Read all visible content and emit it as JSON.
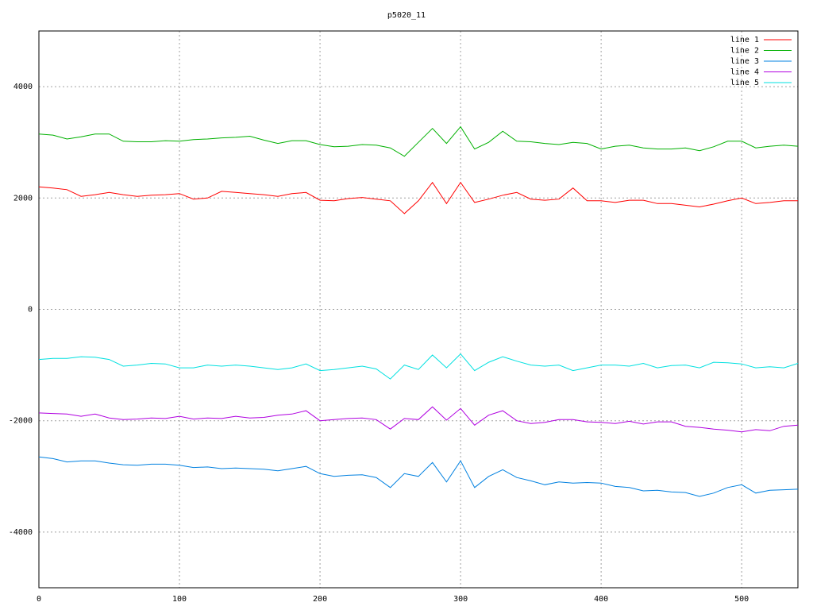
{
  "chart_data": {
    "type": "line",
    "title": "p5020_11",
    "x": [
      0,
      10,
      20,
      30,
      40,
      50,
      60,
      70,
      80,
      90,
      100,
      110,
      120,
      130,
      140,
      150,
      160,
      170,
      180,
      190,
      200,
      210,
      220,
      230,
      240,
      250,
      260,
      270,
      280,
      290,
      300,
      310,
      320,
      330,
      340,
      350,
      360,
      370,
      380,
      390,
      400,
      410,
      420,
      430,
      440,
      450,
      460,
      470,
      480,
      490,
      500,
      510,
      520,
      530,
      540
    ],
    "series": [
      {
        "name": "line 1",
        "color": "#ff0000",
        "values": [
          2200,
          2180,
          2150,
          2030,
          2060,
          2100,
          2060,
          2030,
          2050,
          2060,
          2080,
          1980,
          2000,
          2120,
          2100,
          2080,
          2060,
          2030,
          2080,
          2100,
          1960,
          1950,
          1990,
          2010,
          1980,
          1950,
          1720,
          1950,
          2280,
          1900,
          2280,
          1920,
          1980,
          2050,
          2100,
          1980,
          1960,
          1980,
          2180,
          1950,
          1950,
          1920,
          1960,
          1960,
          1900,
          1900,
          1870,
          1840,
          1890,
          1950,
          2000,
          1900,
          1920,
          1950,
          1950
        ]
      },
      {
        "name": "line 2",
        "color": "#00b000",
        "values": [
          3150,
          3130,
          3060,
          3100,
          3150,
          3150,
          3020,
          3010,
          3010,
          3030,
          3020,
          3050,
          3060,
          3080,
          3090,
          3110,
          3040,
          2980,
          3030,
          3030,
          2960,
          2920,
          2930,
          2960,
          2950,
          2900,
          2750,
          3000,
          3250,
          2980,
          3280,
          2880,
          3000,
          3200,
          3020,
          3010,
          2980,
          2960,
          3000,
          2980,
          2880,
          2930,
          2950,
          2900,
          2880,
          2880,
          2900,
          2850,
          2920,
          3020,
          3020,
          2900,
          2930,
          2950,
          2930
        ]
      },
      {
        "name": "line 3",
        "color": "#0080e0",
        "values": [
          -2650,
          -2680,
          -2740,
          -2720,
          -2720,
          -2760,
          -2790,
          -2800,
          -2780,
          -2780,
          -2800,
          -2840,
          -2830,
          -2860,
          -2850,
          -2860,
          -2870,
          -2900,
          -2860,
          -2820,
          -2950,
          -3000,
          -2980,
          -2970,
          -3020,
          -3200,
          -2950,
          -3000,
          -2750,
          -3100,
          -2720,
          -3200,
          -3000,
          -2880,
          -3020,
          -3080,
          -3150,
          -3100,
          -3120,
          -3110,
          -3120,
          -3180,
          -3200,
          -3260,
          -3250,
          -3280,
          -3290,
          -3360,
          -3300,
          -3200,
          -3150,
          -3300,
          -3250,
          -3240,
          -3230
        ]
      },
      {
        "name": "line 4",
        "color": "#b000e0",
        "values": [
          -1860,
          -1870,
          -1880,
          -1920,
          -1880,
          -1950,
          -1980,
          -1970,
          -1950,
          -1960,
          -1920,
          -1970,
          -1950,
          -1960,
          -1920,
          -1950,
          -1940,
          -1900,
          -1880,
          -1820,
          -2000,
          -1980,
          -1960,
          -1950,
          -1980,
          -2150,
          -1960,
          -1980,
          -1750,
          -1990,
          -1780,
          -2080,
          -1900,
          -1820,
          -2000,
          -2050,
          -2030,
          -1980,
          -1980,
          -2020,
          -2030,
          -2050,
          -2010,
          -2060,
          -2020,
          -2020,
          -2100,
          -2120,
          -2150,
          -2170,
          -2200,
          -2160,
          -2180,
          -2100,
          -2080
        ]
      },
      {
        "name": "line 5",
        "color": "#00e0e0",
        "values": [
          -900,
          -880,
          -880,
          -850,
          -860,
          -900,
          -1020,
          -1000,
          -970,
          -980,
          -1050,
          -1050,
          -1000,
          -1020,
          -1000,
          -1020,
          -1050,
          -1080,
          -1050,
          -980,
          -1100,
          -1080,
          -1050,
          -1020,
          -1070,
          -1250,
          -1000,
          -1080,
          -820,
          -1050,
          -800,
          -1100,
          -950,
          -850,
          -930,
          -1000,
          -1020,
          -1000,
          -1100,
          -1050,
          -1000,
          -1000,
          -1020,
          -970,
          -1050,
          -1010,
          -1000,
          -1050,
          -950,
          -960,
          -980,
          -1050,
          -1030,
          -1050,
          -970
        ]
      }
    ],
    "xlim": [
      0,
      540
    ],
    "xticks": [
      0,
      100,
      200,
      300,
      400,
      500
    ],
    "ylim": [
      -5000,
      5000
    ],
    "yticks": [
      -4000,
      -2000,
      0,
      2000,
      4000
    ],
    "grid": true,
    "legend": "top-right"
  }
}
